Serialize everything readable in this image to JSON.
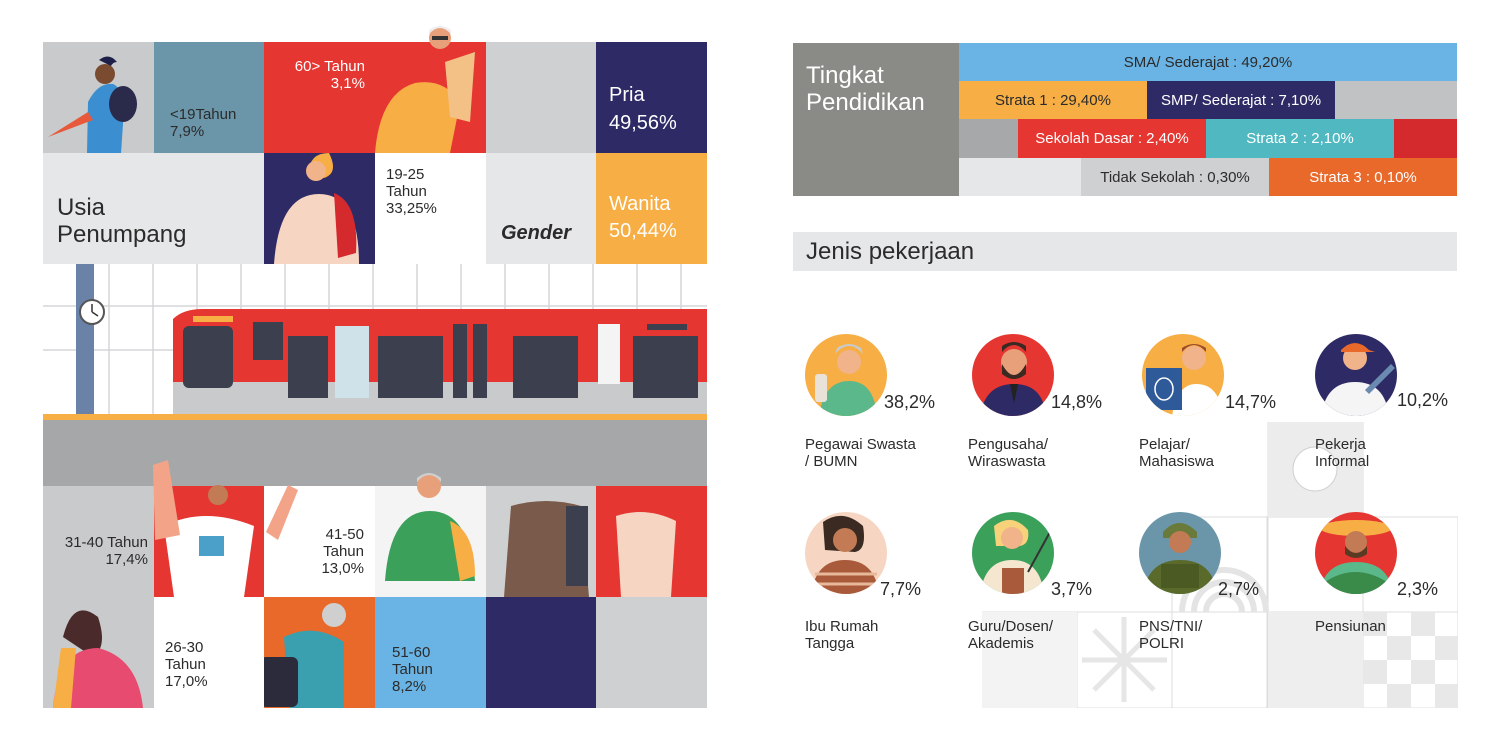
{
  "colors": {
    "navy": "#2e2a66",
    "red": "#e63631",
    "yellow": "#f7ae45",
    "blue": "#6ab4e5",
    "gray": "#cfd0d2",
    "steel": "#6b96a9",
    "orange": "#e8692a",
    "teal": "#4fb8c0",
    "dark_gray": "#8a8a86",
    "darkred": "#d42a2e"
  },
  "age": {
    "title_line1": "Usia",
    "title_line2": "Penumpang",
    "under19": {
      "label": "<19Tahun",
      "value": "7,9%"
    },
    "over60": {
      "label": "60> Tahun",
      "value": "3,1%"
    },
    "age19_25": {
      "l1": "19-25",
      "l2": "Tahun",
      "value": "33,25%"
    },
    "age31_40": {
      "label": "31-40 Tahun",
      "value": "17,4%"
    },
    "age41_50": {
      "l1": "41-50",
      "l2": "Tahun",
      "value": "13,0%"
    },
    "age26_30": {
      "l1": "26-30",
      "l2": "Tahun",
      "value": "17,0%"
    },
    "age51_60": {
      "l1": "51-60",
      "l2": "Tahun",
      "value": "8,2%"
    }
  },
  "gender": {
    "title": "Gender",
    "male": {
      "label": "Pria",
      "value": "49,56%"
    },
    "female": {
      "label": "Wanita",
      "value": "50,44%"
    }
  },
  "education": {
    "title_line1": "Tingkat",
    "title_line2": "Pendidikan",
    "items": {
      "sma": "SMA/ Sederajat : 49,20%",
      "s1": "Strata 1 : 29,40%",
      "smp": "SMP/ Sederajat : 7,10%",
      "sd": "Sekolah Dasar : 2,40%",
      "s2": "Strata 2 : 2,10%",
      "none": "Tidak Sekolah : 0,30%",
      "s3": "Strata 3 : 0,10%"
    }
  },
  "jobs": {
    "title": "Jenis pekerjaan",
    "items": [
      {
        "pct": "38,2%",
        "l1": "Pegawai Swasta",
        "l2": "/ BUMN"
      },
      {
        "pct": "14,8%",
        "l1": "Pengusaha/",
        "l2": "Wiraswasta"
      },
      {
        "pct": "14,7%",
        "l1": "Pelajar/",
        "l2": "Mahasiswa"
      },
      {
        "pct": "10,2%",
        "l1": "Pekerja",
        "l2": "Informal"
      },
      {
        "pct": "7,7%",
        "l1": "Ibu Rumah",
        "l2": "Tangga"
      },
      {
        "pct": "3,7%",
        "l1": "Guru/Dosen/",
        "l2": "Akademis"
      },
      {
        "pct": "2,7%",
        "l1": "PNS/TNI/",
        "l2": "POLRI"
      },
      {
        "pct": "2,3%",
        "l1": "Pensiunan",
        "l2": ""
      }
    ]
  }
}
